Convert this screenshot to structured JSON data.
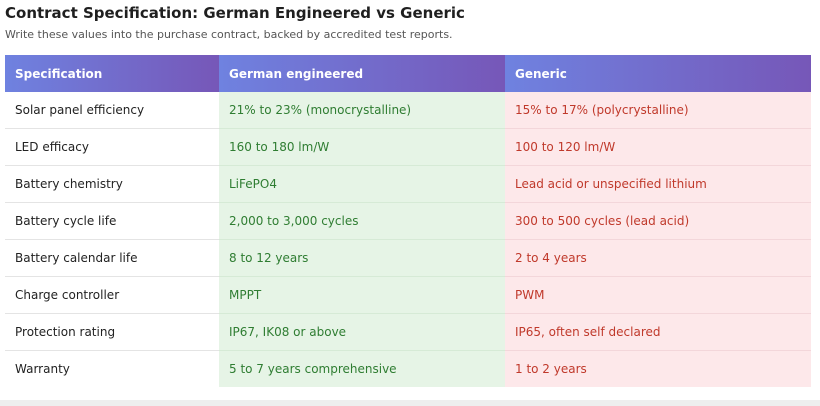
{
  "title": "Contract Specification: German Engineered vs Generic",
  "subtitle": "Write these values into the purchase contract, backed by accredited test reports.",
  "table": {
    "headers": [
      "Specification",
      "German engineered",
      "Generic"
    ],
    "rows": [
      {
        "spec": "Solar panel efficiency",
        "german": "21% to 23% (monocrystalline)",
        "generic": "15% to 17% (polycrystalline)"
      },
      {
        "spec": "LED efficacy",
        "german": "160 to 180 lm/W",
        "generic": "100 to 120 lm/W"
      },
      {
        "spec": "Battery chemistry",
        "german": "LiFePO4",
        "generic": "Lead acid or unspecified lithium"
      },
      {
        "spec": "Battery cycle life",
        "german": "2,000 to 3,000 cycles",
        "generic": "300 to 500 cycles (lead acid)"
      },
      {
        "spec": "Battery calendar life",
        "german": "8 to 12 years",
        "generic": "2 to 4 years"
      },
      {
        "spec": "Charge controller",
        "german": "MPPT",
        "generic": "PWM"
      },
      {
        "spec": "Protection rating",
        "german": "IP67, IK08 or above",
        "generic": "IP65, often self declared"
      },
      {
        "spec": "Warranty",
        "german": "5 to 7 years comprehensive",
        "generic": "1 to 2 years"
      }
    ]
  },
  "colors": {
    "header_gradient_start": "#6f82e0",
    "header_gradient_end": "#7657b8",
    "german_text": "#2f7d32",
    "german_bg": "#e6f4e6",
    "generic_text": "#c0392b",
    "generic_bg": "#fde8ea"
  }
}
